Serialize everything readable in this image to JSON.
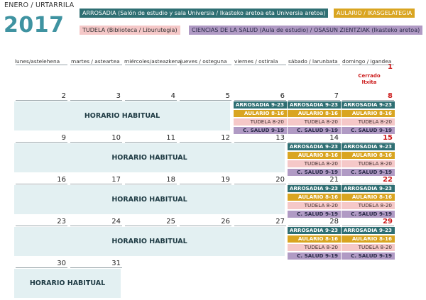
{
  "header": {
    "month": "ENERO / URTARRILA",
    "year": "2017"
  },
  "legend": {
    "arrosadia": "ARROSADIA (Salón de estudio y sala Universia / Ikasteko aretoa eta Universia aretoa)",
    "aulario": "AULARIO / IKASGELATEGIA",
    "tudela": "TUDELA (Biblioteca / Liburutegia)",
    "ciencias": "CIENCIAS DE LA SALUD (Aula de estudio) / OSASUN ZIENTZIAK (Ikasteko aretoa)"
  },
  "weekdays": [
    "lunes/astelehena",
    "martes / asteartea",
    "miércoles/asteazkena",
    "jueves / osteguna",
    "viernes / ostirala",
    "sábado / larunbata",
    "domingo / igandea"
  ],
  "closed_note": "Cerrado Itxita",
  "regular_hours": "HORARIO HABITUAL",
  "schedule": {
    "arrosadia": "ARROSADIA 9-23",
    "aulario": "AULARIO 8-16",
    "tudela": "TUDELA 8-20",
    "salud": "C. SALUD 9-19"
  },
  "weeks": [
    [
      "",
      "",
      "",
      "",
      "",
      "",
      "1"
    ],
    [
      "2",
      "3",
      "4",
      "5",
      "6",
      "7",
      "8"
    ],
    [
      "9",
      "10",
      "11",
      "12",
      "13",
      "14",
      "15"
    ],
    [
      "16",
      "17",
      "18",
      "19",
      "20",
      "21",
      "22"
    ],
    [
      "23",
      "24",
      "25",
      "26",
      "27",
      "28",
      "29"
    ],
    [
      "30",
      "31",
      "",
      "",
      "",
      "",
      ""
    ]
  ],
  "colors": {
    "arrosadia": "#2f6f73",
    "aulario": "#d9a521",
    "tudela": "#f5c8c8",
    "salud": "#b09ac4",
    "sunday": "#cc1b1b",
    "regular": "#e3f0f2"
  }
}
